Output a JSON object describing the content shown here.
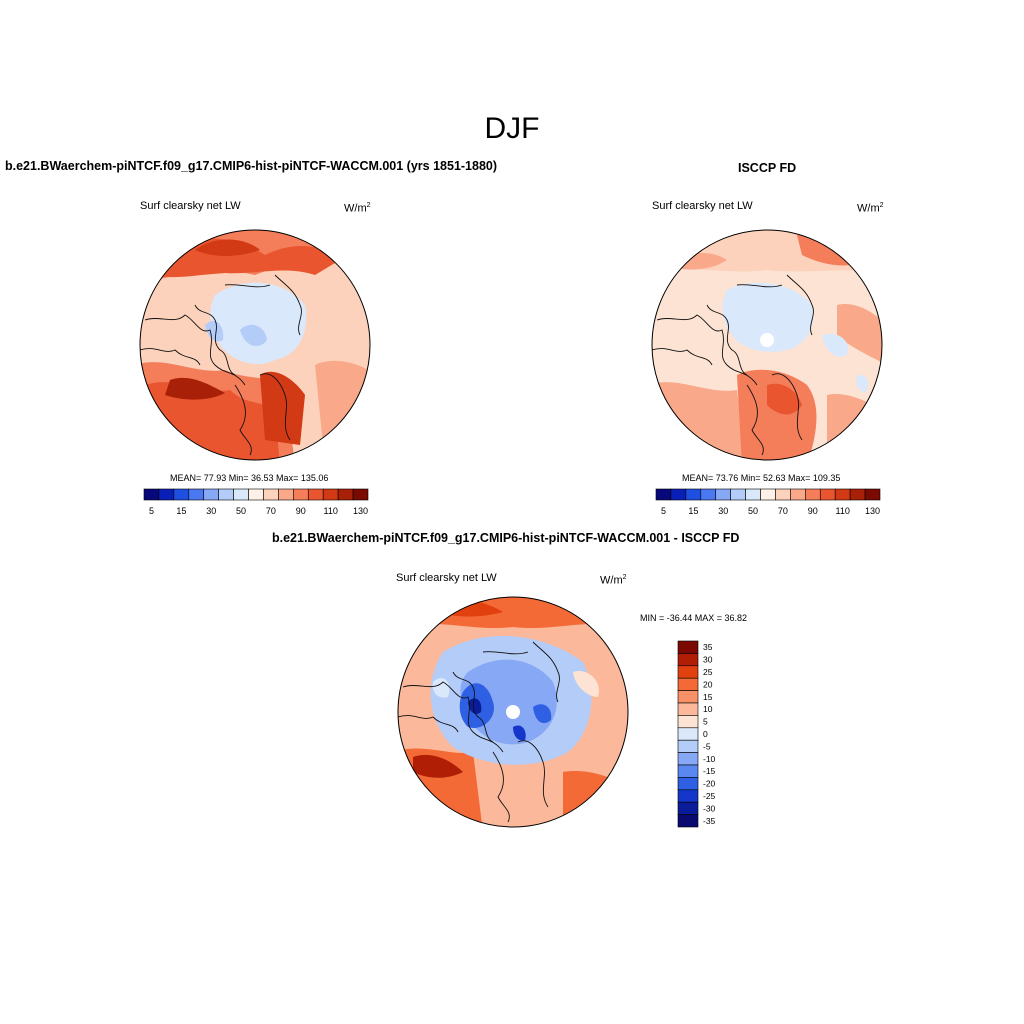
{
  "title": "DJF",
  "panels": {
    "model": {
      "case_title": "b.e21.BWaerchem-piNTCF.f09_g17.CMIP6-hist-piNTCF-WACCM.001 (yrs 1851-1880)",
      "variable": "Surf clearsky net LW",
      "units_base": "W/m",
      "units_exp": "2",
      "stats": "MEAN=  77.93  Min=  36.53  Max= 135.06"
    },
    "obs": {
      "case_title": "ISCCP FD",
      "variable": "Surf clearsky net LW",
      "units_base": "W/m",
      "units_exp": "2",
      "stats": "MEAN=  73.76  Min=  52.63  Max= 109.35"
    },
    "diff": {
      "case_title": "b.e21.BWaerchem-piNTCF.f09_g17.CMIP6-hist-piNTCF-WACCM.001 - ISCCP FD",
      "variable": "Surf clearsky net LW",
      "units_base": "W/m",
      "units_exp": "2",
      "minmax": "MIN = -36.44 MAX =  36.82"
    }
  },
  "colorbar_abs": {
    "colors": [
      "#08087a",
      "#0a1fb8",
      "#1f4fe0",
      "#4a78f0",
      "#86a8f5",
      "#b4ccf8",
      "#dae8fc",
      "#fdf0e6",
      "#fcd2bc",
      "#f9a88a",
      "#f47d5a",
      "#e9552e",
      "#d13a14",
      "#a82008",
      "#7a0a02"
    ],
    "labels": [
      "5",
      "15",
      "30",
      "50",
      "70",
      "90",
      "110",
      "130"
    ]
  },
  "colorbar_diff": {
    "colors": [
      "#7a0a02",
      "#b01e06",
      "#e0410f",
      "#f36a37",
      "#f89168",
      "#fbb89a",
      "#fde3d3",
      "#dae8fc",
      "#b4ccf8",
      "#86a8f5",
      "#5a87f0",
      "#2f5fe3",
      "#1536c8",
      "#0a1c9a",
      "#080a70"
    ],
    "labels": [
      "35",
      "30",
      "25",
      "20",
      "15",
      "10",
      "5",
      "0",
      "-5",
      "-10",
      "-15",
      "-20",
      "-25",
      "-30",
      "-35"
    ]
  }
}
